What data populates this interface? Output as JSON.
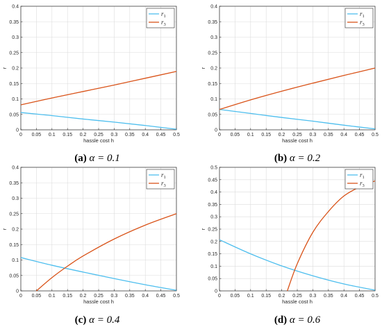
{
  "chart_data": [
    {
      "type": "line",
      "caption_label": "(a)",
      "caption_text": "α = 0.1",
      "xlabel": "hassle cost h",
      "ylabel": "r",
      "xlim": [
        0,
        0.5
      ],
      "ylim": [
        0,
        0.4
      ],
      "xticks": [
        "0",
        "0.05",
        "0.1",
        "0.15",
        "0.2",
        "0.25",
        "0.3",
        "0.35",
        "0.4",
        "0.45",
        "0.5"
      ],
      "yticks": [
        "0",
        "0.05",
        "0.1",
        "0.15",
        "0.2",
        "0.25",
        "0.3",
        "0.35",
        "0.4"
      ],
      "grid": true,
      "legend_position": "top-right",
      "series": [
        {
          "name": "r1",
          "color": "#4dbeee",
          "x": [
            0,
            0.1,
            0.2,
            0.3,
            0.4,
            0.5
          ],
          "y": [
            0.056,
            0.046,
            0.035,
            0.025,
            0.014,
            0.002
          ]
        },
        {
          "name": "r3",
          "color": "#d95319",
          "x": [
            0,
            0.1,
            0.2,
            0.3,
            0.4,
            0.5
          ],
          "y": [
            0.081,
            0.103,
            0.124,
            0.145,
            0.167,
            0.189
          ]
        }
      ]
    },
    {
      "type": "line",
      "caption_label": "(b)",
      "caption_text": "α = 0.2",
      "xlabel": "hassle cost h",
      "ylabel": "r",
      "xlim": [
        0,
        0.5
      ],
      "ylim": [
        0,
        0.4
      ],
      "xticks": [
        "0",
        "0.05",
        "0.1",
        "0.15",
        "0.2",
        "0.25",
        "0.3",
        "0.35",
        "0.4",
        "0.45",
        "0.5"
      ],
      "yticks": [
        "0",
        "0.05",
        "0.1",
        "0.15",
        "0.2",
        "0.25",
        "0.3",
        "0.35",
        "0.4"
      ],
      "grid": true,
      "legend_position": "top-right",
      "series": [
        {
          "name": "r1",
          "color": "#4dbeee",
          "x": [
            0,
            0.1,
            0.2,
            0.3,
            0.4,
            0.5
          ],
          "y": [
            0.066,
            0.053,
            0.04,
            0.028,
            0.015,
            0.003
          ]
        },
        {
          "name": "r3",
          "color": "#d95319",
          "x": [
            0,
            0.1,
            0.2,
            0.3,
            0.4,
            0.5
          ],
          "y": [
            0.066,
            0.097,
            0.125,
            0.151,
            0.176,
            0.2
          ]
        }
      ]
    },
    {
      "type": "line",
      "caption_label": "(c)",
      "caption_text": "α = 0.4",
      "xlabel": "hassle cost h",
      "ylabel": "r",
      "xlim": [
        0,
        0.5
      ],
      "ylim": [
        0,
        0.4
      ],
      "xticks": [
        "0",
        "0.05",
        "0.1",
        "0.15",
        "0.2",
        "0.25",
        "0.3",
        "0.35",
        "0.4",
        "0.45",
        "0.5"
      ],
      "yticks": [
        "0",
        "0.05",
        "0.1",
        "0.15",
        "0.2",
        "0.25",
        "0.3",
        "0.35",
        "0.4"
      ],
      "grid": true,
      "legend_position": "top-right",
      "series": [
        {
          "name": "r1",
          "color": "#4dbeee",
          "x": [
            0,
            0.1,
            0.2,
            0.3,
            0.4,
            0.5
          ],
          "y": [
            0.108,
            0.083,
            0.061,
            0.04,
            0.02,
            0.002
          ]
        },
        {
          "name": "r3",
          "color": "#d95319",
          "x": [
            0.05,
            0.1,
            0.15,
            0.2,
            0.3,
            0.4,
            0.5
          ],
          "y": [
            0.0,
            0.043,
            0.08,
            0.113,
            0.168,
            0.213,
            0.25
          ]
        }
      ]
    },
    {
      "type": "line",
      "caption_label": "(d)",
      "caption_text": "α = 0.6",
      "xlabel": "hassle cost h",
      "ylabel": "r",
      "xlim": [
        0,
        0.5
      ],
      "ylim": [
        0,
        0.5
      ],
      "xticks": [
        "0",
        "0.05",
        "0.1",
        "0.15",
        "0.2",
        "0.25",
        "0.3",
        "0.35",
        "0.4",
        "0.45",
        "0.5"
      ],
      "yticks": [
        "0",
        "0.05",
        "0.1",
        "0.15",
        "0.2",
        "0.25",
        "0.3",
        "0.35",
        "0.4",
        "0.45",
        "0.5"
      ],
      "grid": true,
      "legend_position": "top-right",
      "series": [
        {
          "name": "r1",
          "color": "#4dbeee",
          "x": [
            0,
            0.1,
            0.2,
            0.3,
            0.4,
            0.5
          ],
          "y": [
            0.207,
            0.15,
            0.101,
            0.061,
            0.028,
            0.003
          ]
        },
        {
          "name": "r3",
          "color": "#d95319",
          "x": [
            0.218,
            0.25,
            0.3,
            0.35,
            0.4,
            0.45,
            0.5
          ],
          "y": [
            0.0,
            0.11,
            0.237,
            0.321,
            0.384,
            0.42,
            0.445
          ]
        }
      ]
    }
  ]
}
